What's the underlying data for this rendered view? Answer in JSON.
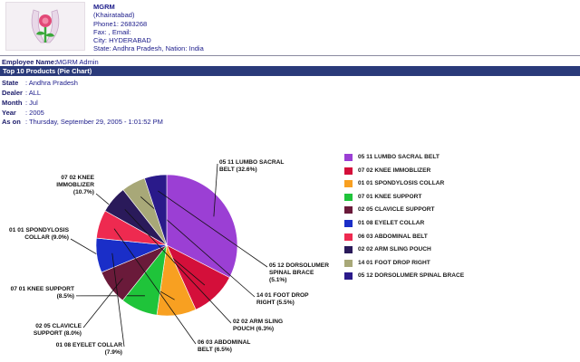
{
  "org": {
    "name": "MGRM",
    "area": "(Khairatabad)",
    "phone": "Phone1: 2683268",
    "fax_email": "Fax: , Email:",
    "city": "City: HYDERABAD",
    "state_nation": "State: Andhra Pradesh, Nation: India"
  },
  "employee": {
    "label": "Employee Name:",
    "value": "MGRM Admin"
  },
  "report_title": "Top 10 Products (Pie Chart)",
  "meta": [
    {
      "key": "State",
      "value": ": Andhra Pradesh"
    },
    {
      "key": "Dealer",
      "value": ": ALL"
    },
    {
      "key": "Month",
      "value": ": Jul"
    },
    {
      "key": "Year",
      "value": ": 2005"
    },
    {
      "key": "As on",
      "value": ": Thursday, September 29, 2005 - 1:01:52 PM"
    }
  ],
  "chart_data": {
    "type": "pie",
    "title": "",
    "slices": [
      {
        "name": "05 11 LUMBO SACRAL BELT",
        "label": [
          "05 11 LUMBO SACRAL",
          "BELT (32.6%)"
        ],
        "value": 32.6,
        "color": "#9b3fd4"
      },
      {
        "name": "07 02 KNEE IMMOBLIZER",
        "label": [
          "07 02 KNEE",
          "IMMOBLIZER",
          "(10.7%)"
        ],
        "value": 10.7,
        "color": "#d40f3a"
      },
      {
        "name": "01 01 SPONDYLOSIS COLLAR",
        "label": [
          "01 01 SPONDYLOSIS",
          "COLLAR (9.0%)"
        ],
        "value": 9.0,
        "color": "#f8a021"
      },
      {
        "name": "07 01 KNEE SUPPORT",
        "label": [
          "07 01 KNEE SUPPORT",
          "(8.5%)"
        ],
        "value": 8.5,
        "color": "#1fc43a"
      },
      {
        "name": "02 05 CLAVICLE SUPPORT",
        "label": [
          "02 05 CLAVICLE",
          "SUPPORT (8.0%)"
        ],
        "value": 8.0,
        "color": "#6a1a3a"
      },
      {
        "name": "01 08 EYELET COLLAR",
        "label": [
          "01 08 EYELET COLLAR",
          "(7.9%)"
        ],
        "value": 7.9,
        "color": "#1a2ec8"
      },
      {
        "name": "06 03 ABDOMINAL BELT",
        "label": [
          "06 03 ABDOMINAL",
          "BELT (6.5%)"
        ],
        "value": 6.5,
        "color": "#ee2a50"
      },
      {
        "name": "02 02 ARM SLING POUCH",
        "label": [
          "02 02 ARM SLING",
          "POUCH (6.3%)"
        ],
        "value": 6.3,
        "color": "#2a1a5a"
      },
      {
        "name": "14 01 FOOT DROP RIGHT",
        "label": [
          "14 01 FOOT DROP",
          "RIGHT (5.5%)"
        ],
        "value": 5.5,
        "color": "#a8a878"
      },
      {
        "name": "05 12 DORSOLUMER SPINAL BRACE",
        "label": [
          "05 12 DORSOLUMER",
          "SPINAL BRACE",
          "(5.1%)"
        ],
        "value": 5.1,
        "color": "#2a1a8a"
      }
    ],
    "legend_position": "right"
  }
}
